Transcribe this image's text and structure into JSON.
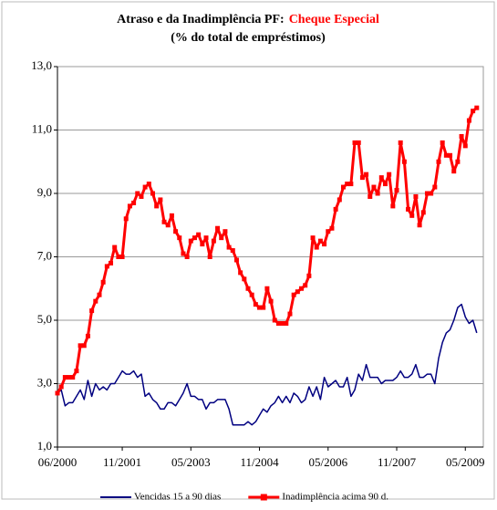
{
  "chart_data": {
    "type": "line",
    "title": "Atraso e da Inadimplência PF:",
    "title_highlight": "Cheque Especial",
    "subtitle": "(% do total de empréstimos)",
    "categories": [
      "06/2000",
      null,
      null,
      null,
      null,
      null,
      null,
      null,
      null,
      null,
      null,
      null,
      null,
      null,
      null,
      null,
      null,
      "11/2001",
      null,
      null,
      null,
      null,
      null,
      null,
      null,
      null,
      null,
      null,
      null,
      null,
      null,
      null,
      null,
      null,
      null,
      "05/2003",
      null,
      null,
      null,
      null,
      null,
      null,
      null,
      null,
      null,
      null,
      null,
      null,
      null,
      null,
      null,
      null,
      null,
      "11/2004",
      null,
      null,
      null,
      null,
      null,
      null,
      null,
      null,
      null,
      null,
      null,
      null,
      null,
      null,
      null,
      null,
      null,
      "05/2006",
      null,
      null,
      null,
      null,
      null,
      null,
      null,
      null,
      null,
      null,
      null,
      null,
      null,
      null,
      null,
      null,
      null,
      "11/2007",
      null,
      null,
      null,
      null,
      null,
      null,
      null,
      null,
      null,
      null,
      null,
      null,
      null,
      null,
      null,
      null,
      null,
      "05/2009",
      null,
      null,
      null
    ],
    "series": [
      {
        "name": "Vencidas 15 a 90 dias",
        "color": "#000080",
        "marker": false,
        "values": [
          2.7,
          2.8,
          2.3,
          2.4,
          2.4,
          2.6,
          2.8,
          2.5,
          3.1,
          2.6,
          3.0,
          2.8,
          2.9,
          2.8,
          3.0,
          3.0,
          3.2,
          3.4,
          3.3,
          3.3,
          3.4,
          3.2,
          3.3,
          2.6,
          2.7,
          2.5,
          2.4,
          2.2,
          2.2,
          2.4,
          2.4,
          2.3,
          2.5,
          2.7,
          3.0,
          2.6,
          2.6,
          2.5,
          2.5,
          2.2,
          2.4,
          2.4,
          2.5,
          2.5,
          2.5,
          2.2,
          1.7,
          1.7,
          1.7,
          1.7,
          1.8,
          1.7,
          1.8,
          2.0,
          2.2,
          2.1,
          2.3,
          2.4,
          2.6,
          2.4,
          2.6,
          2.4,
          2.7,
          2.6,
          2.4,
          2.5,
          2.9,
          2.6,
          2.9,
          2.5,
          3.2,
          2.9,
          3.0,
          3.1,
          2.9,
          2.9,
          3.2,
          2.6,
          2.8,
          3.3,
          3.1,
          3.6,
          3.2,
          3.2,
          3.2,
          3.0,
          3.1,
          3.1,
          3.1,
          3.2,
          3.4,
          3.2,
          3.2,
          3.3,
          3.6,
          3.2,
          3.2,
          3.3,
          3.3,
          3.0,
          3.8,
          4.3,
          4.6,
          4.7,
          5.0,
          5.4,
          5.5,
          5.1,
          4.9,
          5.0,
          4.6
        ]
      },
      {
        "name": "Inadimplência acima 90 d.",
        "color": "#ff0000",
        "marker": true,
        "values": [
          2.7,
          2.9,
          3.2,
          3.2,
          3.2,
          3.4,
          4.2,
          4.2,
          4.5,
          5.3,
          5.6,
          5.8,
          6.2,
          6.7,
          6.8,
          7.3,
          7.0,
          7.0,
          8.2,
          8.6,
          8.7,
          9.0,
          8.9,
          9.2,
          9.3,
          9.0,
          8.6,
          8.8,
          8.1,
          8.0,
          8.3,
          7.8,
          7.6,
          7.1,
          7.0,
          7.5,
          7.6,
          7.7,
          7.4,
          7.6,
          7.0,
          7.5,
          7.9,
          7.6,
          7.8,
          7.3,
          7.2,
          6.9,
          6.5,
          6.3,
          6.0,
          5.8,
          5.5,
          5.4,
          5.4,
          6.0,
          5.6,
          5.0,
          4.9,
          4.9,
          4.9,
          5.2,
          5.8,
          5.9,
          6.0,
          6.1,
          6.4,
          7.6,
          7.3,
          7.5,
          7.4,
          7.8,
          7.9,
          8.5,
          8.8,
          9.2,
          9.3,
          9.3,
          10.6,
          10.6,
          9.5,
          9.6,
          8.9,
          9.2,
          9.0,
          9.5,
          9.3,
          9.6,
          8.6,
          9.1,
          10.6,
          10.0,
          8.5,
          8.3,
          8.9,
          8.0,
          8.4,
          9.0,
          9.0,
          9.2,
          10.0,
          10.6,
          10.2,
          10.2,
          9.7,
          10.0,
          10.8,
          10.5,
          11.3,
          11.6,
          11.7
        ]
      }
    ],
    "ylim": [
      1,
      13
    ],
    "yticks": [
      {
        "value": 1,
        "label": "1,0"
      },
      {
        "value": 3,
        "label": "3,0"
      },
      {
        "value": 5,
        "label": "5,0"
      },
      {
        "value": 7,
        "label": "7,0"
      },
      {
        "value": 9,
        "label": "9,0"
      },
      {
        "value": 11,
        "label": "11,0"
      },
      {
        "value": 13,
        "label": "13,0"
      }
    ],
    "grid": true,
    "legend": "bottom"
  }
}
